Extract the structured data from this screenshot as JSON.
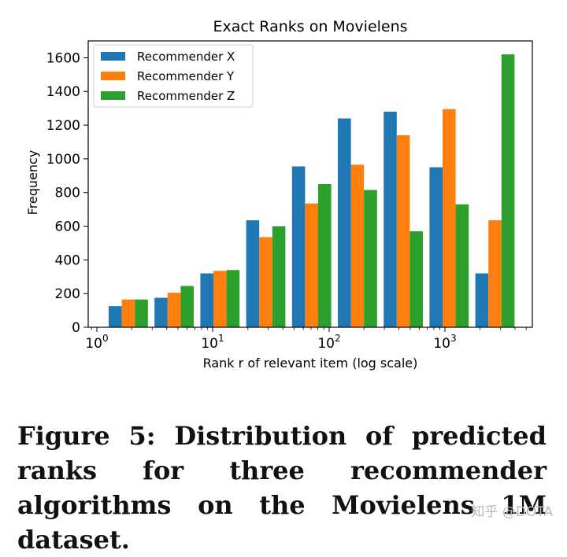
{
  "chart_data": {
    "type": "bar",
    "title": "Exact Ranks on Movielens",
    "xlabel": "Rank r of relevant item (log scale)",
    "ylabel": "Frequency",
    "xscale": "log",
    "ylim": [
      0,
      1700
    ],
    "yticks": [
      0,
      200,
      400,
      600,
      800,
      1000,
      1200,
      1400,
      1600
    ],
    "xtick_labels": [
      "10^0",
      "10^1",
      "10^2",
      "10^3"
    ],
    "legend_position": "top-left",
    "bins": 9,
    "series": [
      {
        "name": "Recommender X",
        "color": "#1f77b4",
        "values": [
          125,
          175,
          320,
          635,
          955,
          1240,
          1280,
          950,
          320
        ]
      },
      {
        "name": "Recommender Y",
        "color": "#ff7f0e",
        "values": [
          165,
          205,
          335,
          535,
          735,
          965,
          1140,
          1295,
          635
        ]
      },
      {
        "name": "Recommender Z",
        "color": "#2ca02c",
        "values": [
          165,
          245,
          340,
          600,
          850,
          815,
          570,
          730,
          1620
        ]
      }
    ]
  },
  "caption": {
    "text": "Figure 5: Distribution of predicted ranks for three recommender algorithms on the Movielens 1M dataset."
  },
  "watermark": {
    "text": "知乎 @DOTA"
  }
}
